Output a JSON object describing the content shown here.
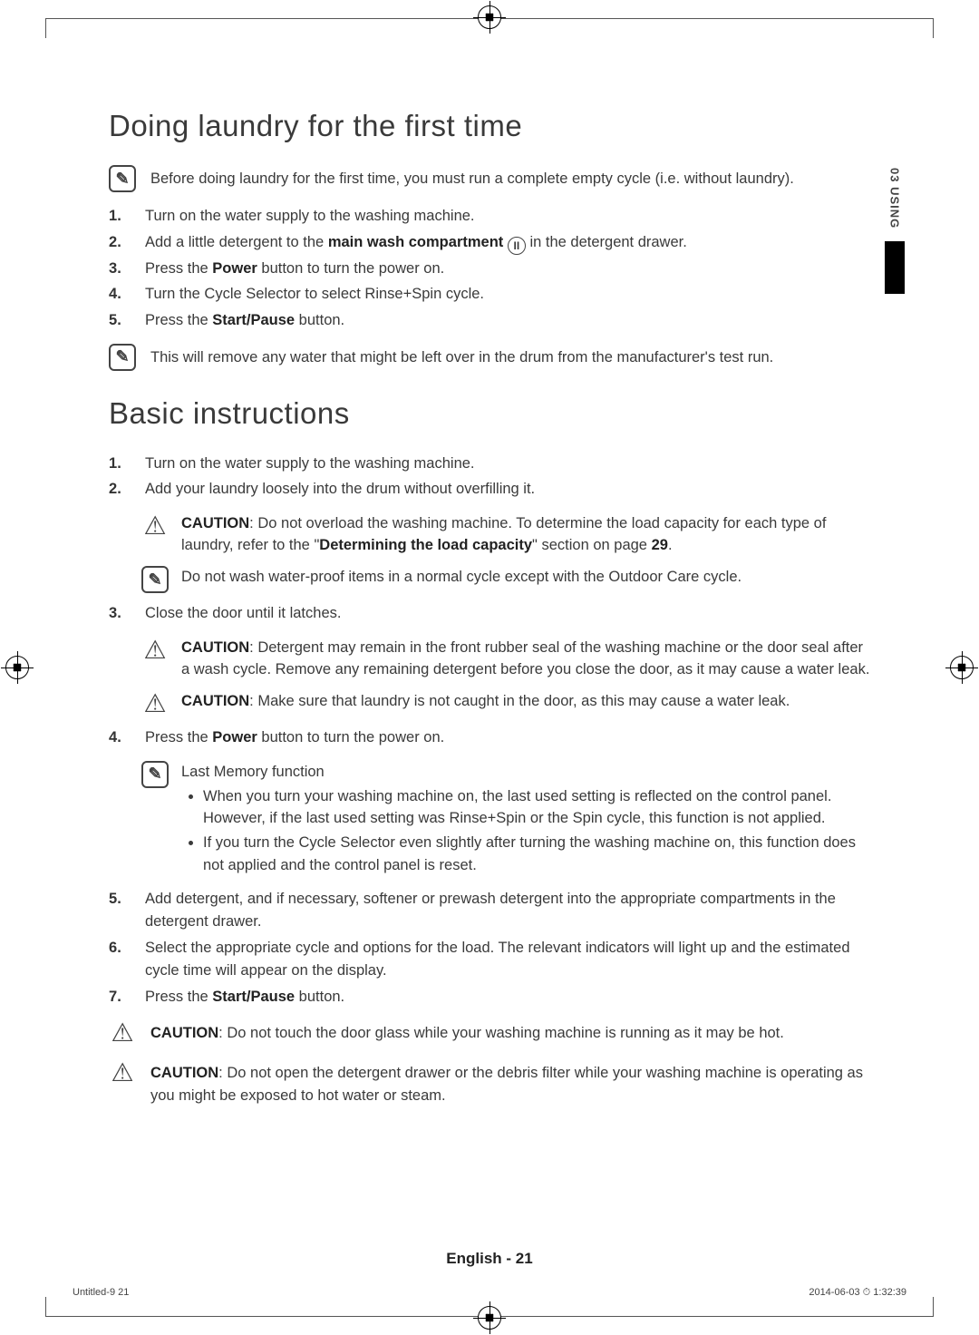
{
  "sideTab": {
    "label": "03  USING"
  },
  "section1": {
    "title": "Doing laundry for the first time",
    "note1": "Before doing laundry for the first time, you must run a complete empty cycle (i.e. without laundry).",
    "steps": [
      "Turn on the water supply to the washing machine.",
      "Add a little detergent to the <b>main wash compartment</b> <span class='circ-ii'>II</span> in the detergent drawer.",
      "Press the <b>Power</b> button to turn the power on.",
      "Turn the Cycle Selector to select Rinse+Spin cycle.",
      "Press the <b>Start/Pause</b> button."
    ],
    "note2": "This will remove any water that might be left over in the drum from the manufacturer's test run."
  },
  "section2": {
    "title": "Basic instructions",
    "step1": "Turn on the water supply to the washing machine.",
    "step2": "Add your laundry loosely into the drum without overfilling it.",
    "step2_caution": "<b>CAUTION</b>: Do not overload the washing machine. To determine the load capacity for each type of laundry, refer to the \"<b>Determining the load capacity</b>\" section on page <b>29</b>.",
    "step2_note": "Do not wash water-proof items in a normal cycle except with the Outdoor Care cycle.",
    "step3": "Close the door until it latches.",
    "step3_caution1": "<b>CAUTION</b>: Detergent may remain in the front rubber seal of the washing machine or the door seal after a wash cycle. Remove any remaining detergent before you close the door, as it may cause a water leak.",
    "step3_caution2": "<b>CAUTION</b>: Make sure that laundry is not caught in the door, as this may cause a water leak.",
    "step4": "Press the <b>Power</b> button to turn the power on.",
    "step4_note_title": "Last Memory function",
    "step4_note_b1": "When you turn your washing machine on, the last used setting is reflected on the control panel. However, if the last used setting was Rinse+Spin or the Spin cycle, this function is not applied.",
    "step4_note_b2": "If you turn the Cycle Selector even slightly after turning the washing machine on, this function does not applied and the control panel is reset.",
    "step5": "Add detergent, and if necessary, softener or prewash detergent into the appropriate compartments in the detergent drawer.",
    "step6": "Select the appropriate cycle and options for the load. The relevant indicators will light up and the estimated cycle time will appear on the display.",
    "step7": "Press the <b>Start/Pause</b> button.",
    "end_caution1": "<b>CAUTION</b>: Do not touch the door glass while your washing machine is running as it may be hot.",
    "end_caution2": "<b>CAUTION</b>: Do not open the detergent drawer or the debris filter while your washing machine is operating as you might be exposed to hot water or steam."
  },
  "footer": {
    "pageLabel": "English - 21",
    "left": "Untitled-9   21",
    "right": "2014-06-03   ⏱ 1:32:39"
  }
}
